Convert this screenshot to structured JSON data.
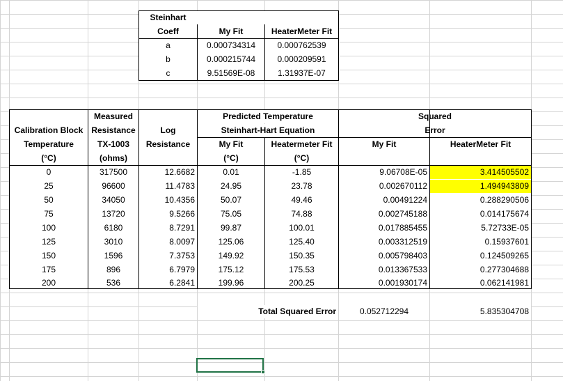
{
  "coeff_table": {
    "header": [
      "Steinhart",
      "Coeff",
      "My Fit",
      "HeaterMeter Fit"
    ],
    "rows": [
      [
        "a",
        "0.000734314",
        "0.000762539"
      ],
      [
        "b",
        "0.000215744",
        "0.000209591"
      ],
      [
        "c",
        "9.51569E-08",
        "1.31937E-07"
      ]
    ]
  },
  "main_table": {
    "headers": {
      "calibration_block": "Calibration Block",
      "temperature": "Temperature",
      "temp_unit": "(°C)",
      "measured": "Measured",
      "resistance": "Resistance",
      "probe": "TX-1003",
      "ohms": "(ohms)",
      "log": "Log",
      "log_resistance": "Resistance",
      "predicted": "Predicted Temperature",
      "equation": "Steinhart-Hart Equation",
      "my_fit": "My Fit",
      "heatermeter_fit_lower": "Heatermeter Fit",
      "my_fit_unit": "(°C)",
      "hm_fit_unit": "(°C)",
      "squared": "Squared",
      "error": "Error",
      "sq_my_fit": "My Fit",
      "sq_hm_fit": "HeaterMeter Fit"
    },
    "rows": [
      [
        "0",
        "317500",
        "12.6682",
        "0.01",
        "-1.85",
        "9.06708E-05",
        "3.414505502"
      ],
      [
        "25",
        "96600",
        "11.4783",
        "24.95",
        "23.78",
        "0.002670112",
        "1.494943809"
      ],
      [
        "50",
        "34050",
        "10.4356",
        "50.07",
        "49.46",
        "0.00491224",
        "0.288290506"
      ],
      [
        "75",
        "13720",
        "9.5266",
        "75.05",
        "74.88",
        "0.002745188",
        "0.014175674"
      ],
      [
        "100",
        "6180",
        "8.7291",
        "99.87",
        "100.01",
        "0.017885455",
        "5.72733E-05"
      ],
      [
        "125",
        "3010",
        "8.0097",
        "125.06",
        "125.40",
        "0.003312519",
        "0.15937601"
      ],
      [
        "150",
        "1596",
        "7.3753",
        "149.92",
        "150.35",
        "0.005798403",
        "0.124509265"
      ],
      [
        "175",
        "896",
        "6.7979",
        "175.12",
        "175.53",
        "0.013367533",
        "0.277304688"
      ],
      [
        "200",
        "536",
        "6.2841",
        "199.96",
        "200.25",
        "0.001930174",
        "0.062141981"
      ]
    ],
    "highlight_color": "#ffff00"
  },
  "totals": {
    "label": "Total Squared Error",
    "my_fit": "0.052712294",
    "hm_fit": "5.835304708"
  },
  "selection": {
    "border_color": "#217346"
  }
}
